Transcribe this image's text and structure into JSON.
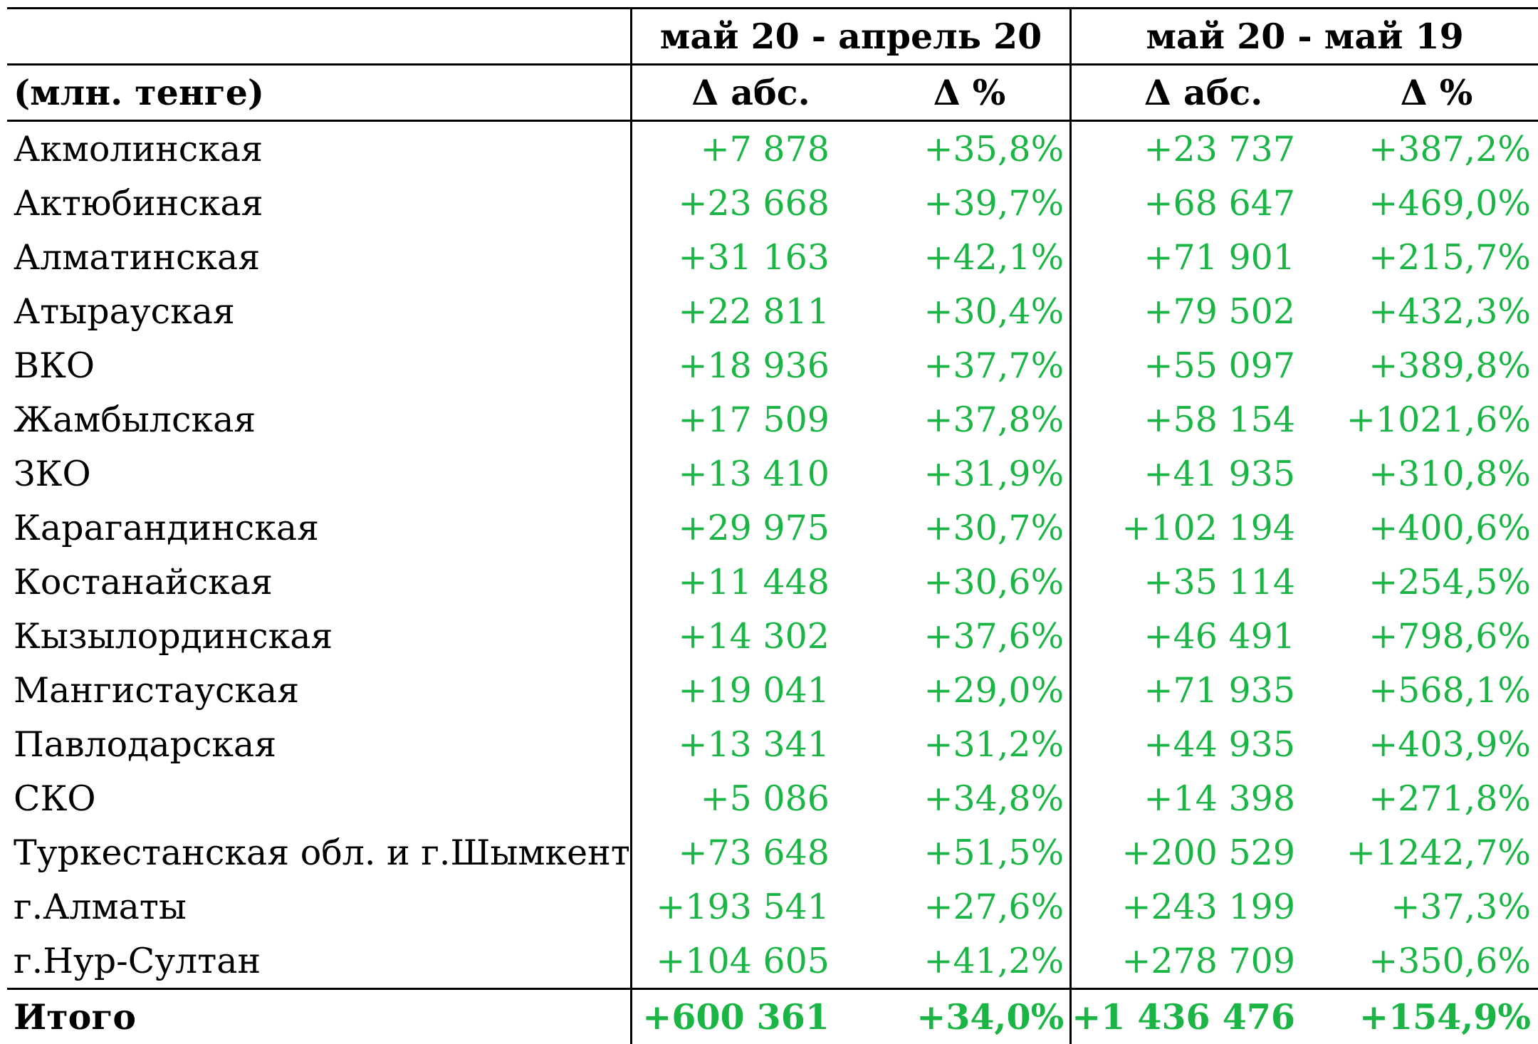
{
  "header": {
    "period1": "май 20 - апрель 20",
    "period2": "май 20 - май 19",
    "unit_label": "(млн. тенге)",
    "abs_label": "Δ абс.",
    "pct_label": "Δ %"
  },
  "rows": [
    {
      "region": "Акмолинская",
      "abs1": "+7 878",
      "pct1": "+35,8%",
      "abs2": "+23 737",
      "pct2": "+387,2%"
    },
    {
      "region": "Актюбинская",
      "abs1": "+23 668",
      "pct1": "+39,7%",
      "abs2": "+68 647",
      "pct2": "+469,0%"
    },
    {
      "region": "Алматинская",
      "abs1": "+31 163",
      "pct1": "+42,1%",
      "abs2": "+71 901",
      "pct2": "+215,7%"
    },
    {
      "region": "Атырауская",
      "abs1": "+22 811",
      "pct1": "+30,4%",
      "abs2": "+79 502",
      "pct2": "+432,3%"
    },
    {
      "region": "ВКО",
      "abs1": "+18 936",
      "pct1": "+37,7%",
      "abs2": "+55 097",
      "pct2": "+389,8%"
    },
    {
      "region": "Жамбылская",
      "abs1": "+17 509",
      "pct1": "+37,8%",
      "abs2": "+58 154",
      "pct2": "+1021,6%"
    },
    {
      "region": "ЗКО",
      "abs1": "+13 410",
      "pct1": "+31,9%",
      "abs2": "+41 935",
      "pct2": "+310,8%"
    },
    {
      "region": "Карагандинская",
      "abs1": "+29 975",
      "pct1": "+30,7%",
      "abs2": "+102 194",
      "pct2": "+400,6%"
    },
    {
      "region": "Костанайская",
      "abs1": "+11 448",
      "pct1": "+30,6%",
      "abs2": "+35 114",
      "pct2": "+254,5%"
    },
    {
      "region": "Кызылординская",
      "abs1": "+14 302",
      "pct1": "+37,6%",
      "abs2": "+46 491",
      "pct2": "+798,6%"
    },
    {
      "region": "Мангистауская",
      "abs1": "+19 041",
      "pct1": "+29,0%",
      "abs2": "+71 935",
      "pct2": "+568,1%"
    },
    {
      "region": "Павлодарская",
      "abs1": "+13 341",
      "pct1": "+31,2%",
      "abs2": "+44 935",
      "pct2": "+403,9%"
    },
    {
      "region": "СКО",
      "abs1": "+5 086",
      "pct1": "+34,8%",
      "abs2": "+14 398",
      "pct2": "+271,8%"
    },
    {
      "region": "Туркестанская обл. и г.Шымкент",
      "abs1": "+73 648",
      "pct1": "+51,5%",
      "abs2": "+200 529",
      "pct2": "+1242,7%"
    },
    {
      "region": "г.Алматы",
      "abs1": "+193 541",
      "pct1": "+27,6%",
      "abs2": "+243 199",
      "pct2": "+37,3%"
    },
    {
      "region": "г.Нур-Султан",
      "abs1": "+104 605",
      "pct1": "+41,2%",
      "abs2": "+278 709",
      "pct2": "+350,6%"
    }
  ],
  "total": {
    "region": "Итого",
    "abs1": "+600 361",
    "pct1": "+34,0%",
    "abs2": "+1 436 476",
    "pct2": "+154,9%"
  },
  "colors": {
    "positive": "#1ab545",
    "text": "#000000",
    "border": "#000000"
  }
}
